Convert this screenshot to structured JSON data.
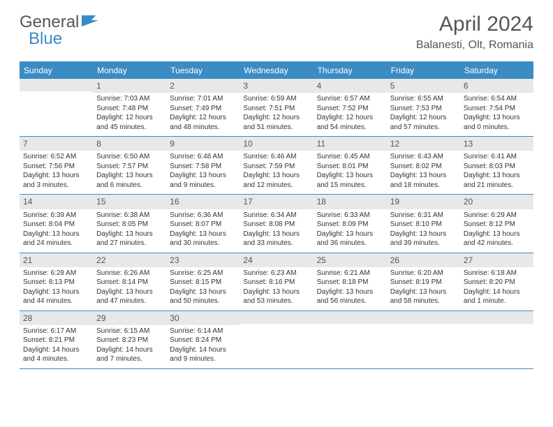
{
  "logo": {
    "part1": "General",
    "part2": "Blue"
  },
  "title": "April 2024",
  "location": "Balanesti, Olt, Romania",
  "colors": {
    "header_bg": "#3b8bc4",
    "header_text": "#ffffff",
    "daynum_bg": "#e8e8e8",
    "text": "#333333",
    "logo_gray": "#555555",
    "logo_blue": "#3b8bc4",
    "border": "#3b8bc4"
  },
  "typography": {
    "title_fontsize": 30,
    "location_fontsize": 16,
    "dayheader_fontsize": 12,
    "daynum_fontsize": 12,
    "body_fontsize": 10
  },
  "day_names": [
    "Sunday",
    "Monday",
    "Tuesday",
    "Wednesday",
    "Thursday",
    "Friday",
    "Saturday"
  ],
  "weeks": [
    [
      {
        "n": "",
        "lines": [
          "",
          "",
          ""
        ]
      },
      {
        "n": "1",
        "lines": [
          "Sunrise: 7:03 AM",
          "Sunset: 7:48 PM",
          "Daylight: 12 hours and 45 minutes."
        ]
      },
      {
        "n": "2",
        "lines": [
          "Sunrise: 7:01 AM",
          "Sunset: 7:49 PM",
          "Daylight: 12 hours and 48 minutes."
        ]
      },
      {
        "n": "3",
        "lines": [
          "Sunrise: 6:59 AM",
          "Sunset: 7:51 PM",
          "Daylight: 12 hours and 51 minutes."
        ]
      },
      {
        "n": "4",
        "lines": [
          "Sunrise: 6:57 AM",
          "Sunset: 7:52 PM",
          "Daylight: 12 hours and 54 minutes."
        ]
      },
      {
        "n": "5",
        "lines": [
          "Sunrise: 6:55 AM",
          "Sunset: 7:53 PM",
          "Daylight: 12 hours and 57 minutes."
        ]
      },
      {
        "n": "6",
        "lines": [
          "Sunrise: 6:54 AM",
          "Sunset: 7:54 PM",
          "Daylight: 13 hours and 0 minutes."
        ]
      }
    ],
    [
      {
        "n": "7",
        "lines": [
          "Sunrise: 6:52 AM",
          "Sunset: 7:56 PM",
          "Daylight: 13 hours and 3 minutes."
        ]
      },
      {
        "n": "8",
        "lines": [
          "Sunrise: 6:50 AM",
          "Sunset: 7:57 PM",
          "Daylight: 13 hours and 6 minutes."
        ]
      },
      {
        "n": "9",
        "lines": [
          "Sunrise: 6:48 AM",
          "Sunset: 7:58 PM",
          "Daylight: 13 hours and 9 minutes."
        ]
      },
      {
        "n": "10",
        "lines": [
          "Sunrise: 6:46 AM",
          "Sunset: 7:59 PM",
          "Daylight: 13 hours and 12 minutes."
        ]
      },
      {
        "n": "11",
        "lines": [
          "Sunrise: 6:45 AM",
          "Sunset: 8:01 PM",
          "Daylight: 13 hours and 15 minutes."
        ]
      },
      {
        "n": "12",
        "lines": [
          "Sunrise: 6:43 AM",
          "Sunset: 8:02 PM",
          "Daylight: 13 hours and 18 minutes."
        ]
      },
      {
        "n": "13",
        "lines": [
          "Sunrise: 6:41 AM",
          "Sunset: 8:03 PM",
          "Daylight: 13 hours and 21 minutes."
        ]
      }
    ],
    [
      {
        "n": "14",
        "lines": [
          "Sunrise: 6:39 AM",
          "Sunset: 8:04 PM",
          "Daylight: 13 hours and 24 minutes."
        ]
      },
      {
        "n": "15",
        "lines": [
          "Sunrise: 6:38 AM",
          "Sunset: 8:05 PM",
          "Daylight: 13 hours and 27 minutes."
        ]
      },
      {
        "n": "16",
        "lines": [
          "Sunrise: 6:36 AM",
          "Sunset: 8:07 PM",
          "Daylight: 13 hours and 30 minutes."
        ]
      },
      {
        "n": "17",
        "lines": [
          "Sunrise: 6:34 AM",
          "Sunset: 8:08 PM",
          "Daylight: 13 hours and 33 minutes."
        ]
      },
      {
        "n": "18",
        "lines": [
          "Sunrise: 6:33 AM",
          "Sunset: 8:09 PM",
          "Daylight: 13 hours and 36 minutes."
        ]
      },
      {
        "n": "19",
        "lines": [
          "Sunrise: 6:31 AM",
          "Sunset: 8:10 PM",
          "Daylight: 13 hours and 39 minutes."
        ]
      },
      {
        "n": "20",
        "lines": [
          "Sunrise: 6:29 AM",
          "Sunset: 8:12 PM",
          "Daylight: 13 hours and 42 minutes."
        ]
      }
    ],
    [
      {
        "n": "21",
        "lines": [
          "Sunrise: 6:28 AM",
          "Sunset: 8:13 PM",
          "Daylight: 13 hours and 44 minutes."
        ]
      },
      {
        "n": "22",
        "lines": [
          "Sunrise: 6:26 AM",
          "Sunset: 8:14 PM",
          "Daylight: 13 hours and 47 minutes."
        ]
      },
      {
        "n": "23",
        "lines": [
          "Sunrise: 6:25 AM",
          "Sunset: 8:15 PM",
          "Daylight: 13 hours and 50 minutes."
        ]
      },
      {
        "n": "24",
        "lines": [
          "Sunrise: 6:23 AM",
          "Sunset: 8:16 PM",
          "Daylight: 13 hours and 53 minutes."
        ]
      },
      {
        "n": "25",
        "lines": [
          "Sunrise: 6:21 AM",
          "Sunset: 8:18 PM",
          "Daylight: 13 hours and 56 minutes."
        ]
      },
      {
        "n": "26",
        "lines": [
          "Sunrise: 6:20 AM",
          "Sunset: 8:19 PM",
          "Daylight: 13 hours and 58 minutes."
        ]
      },
      {
        "n": "27",
        "lines": [
          "Sunrise: 6:18 AM",
          "Sunset: 8:20 PM",
          "Daylight: 14 hours and 1 minute."
        ]
      }
    ],
    [
      {
        "n": "28",
        "lines": [
          "Sunrise: 6:17 AM",
          "Sunset: 8:21 PM",
          "Daylight: 14 hours and 4 minutes."
        ]
      },
      {
        "n": "29",
        "lines": [
          "Sunrise: 6:15 AM",
          "Sunset: 8:23 PM",
          "Daylight: 14 hours and 7 minutes."
        ]
      },
      {
        "n": "30",
        "lines": [
          "Sunrise: 6:14 AM",
          "Sunset: 8:24 PM",
          "Daylight: 14 hours and 9 minutes."
        ]
      },
      {
        "n": "",
        "lines": [
          "",
          "",
          ""
        ]
      },
      {
        "n": "",
        "lines": [
          "",
          "",
          ""
        ]
      },
      {
        "n": "",
        "lines": [
          "",
          "",
          ""
        ]
      },
      {
        "n": "",
        "lines": [
          "",
          "",
          ""
        ]
      }
    ]
  ]
}
